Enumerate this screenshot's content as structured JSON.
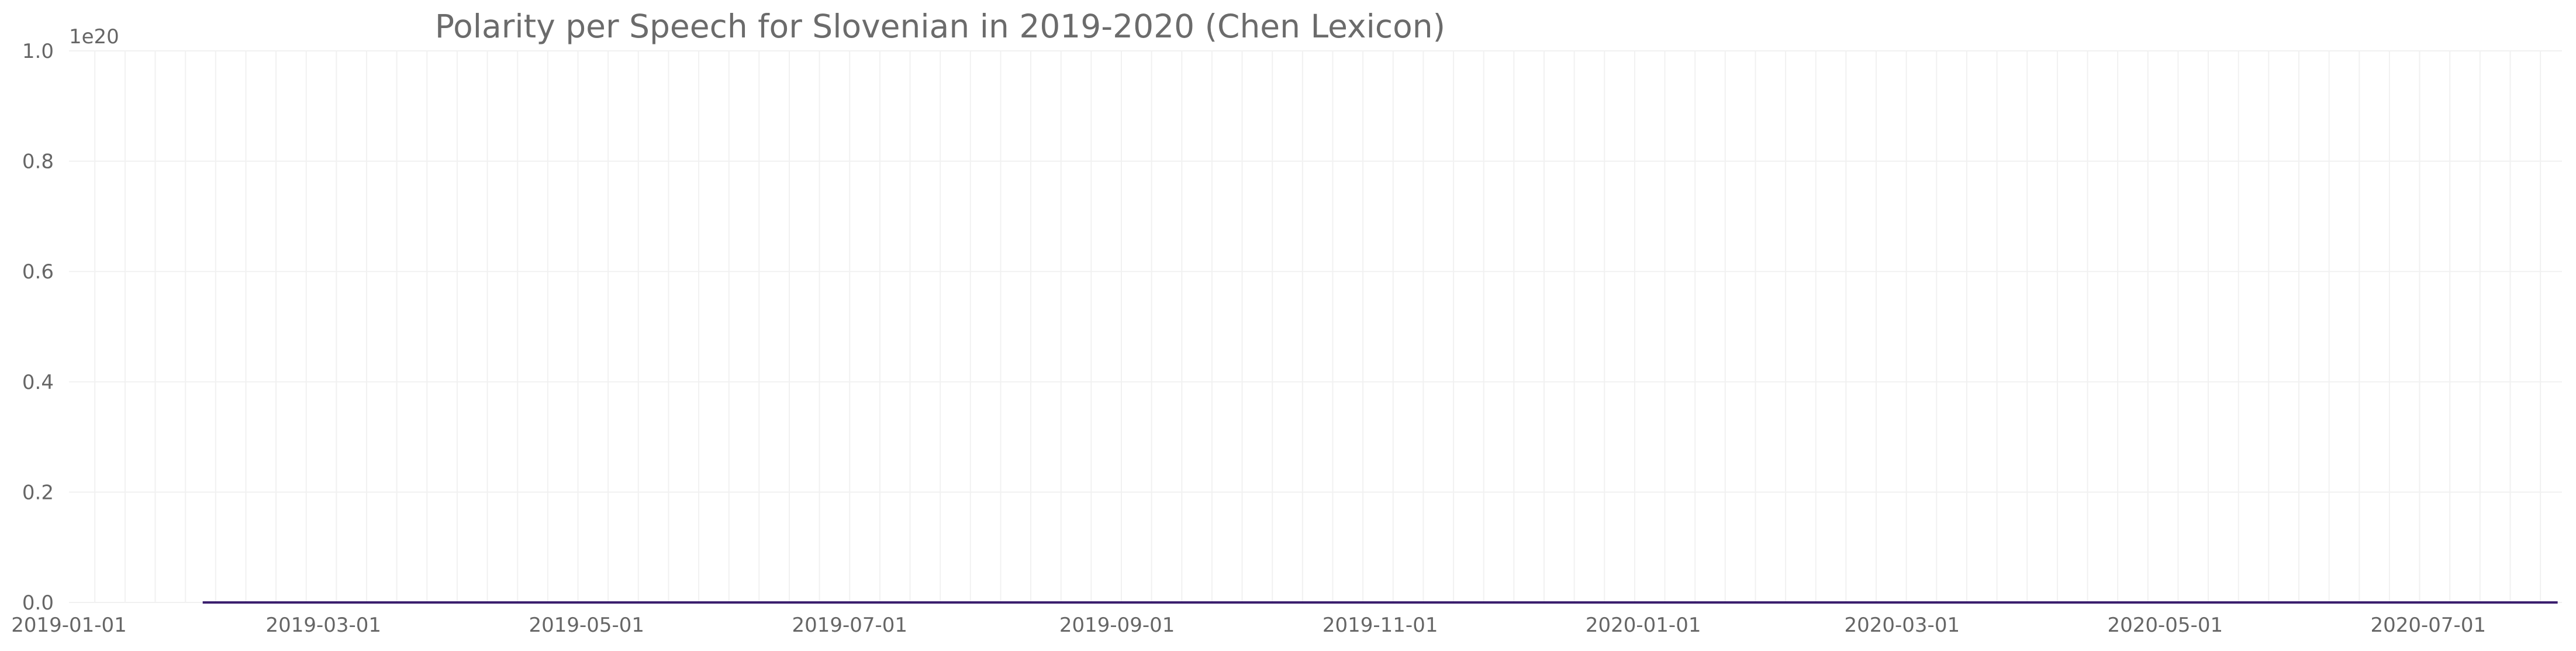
{
  "chart_data": {
    "type": "line",
    "title": "Polarity per Speech for Slovenian in 2019-2020 (Chen Lexicon)",
    "xlabel": "",
    "ylabel": "",
    "y_exponent_label": "1e20",
    "x_domain": [
      "2019-01-01",
      "2020-08-01"
    ],
    "ylim": [
      0,
      1.0
    ],
    "x_ticks": [
      {
        "date": "2019-01-01",
        "label": "2019-01-01"
      },
      {
        "date": "2019-03-01",
        "label": "2019-03-01"
      },
      {
        "date": "2019-05-01",
        "label": "2019-05-01"
      },
      {
        "date": "2019-07-01",
        "label": "2019-07-01"
      },
      {
        "date": "2019-09-01",
        "label": "2019-09-01"
      },
      {
        "date": "2019-11-01",
        "label": "2019-11-01"
      },
      {
        "date": "2020-01-01",
        "label": "2020-01-01"
      },
      {
        "date": "2020-03-01",
        "label": "2020-03-01"
      },
      {
        "date": "2020-05-01",
        "label": "2020-05-01"
      },
      {
        "date": "2020-07-01",
        "label": "2020-07-01"
      }
    ],
    "y_ticks": [
      {
        "value": 0.0,
        "label": "0.0"
      },
      {
        "value": 0.2,
        "label": "0.2"
      },
      {
        "value": 0.4,
        "label": "0.4"
      },
      {
        "value": 0.6,
        "label": "0.6"
      },
      {
        "value": 0.8,
        "label": "0.8"
      },
      {
        "value": 1.0,
        "label": "1.0"
      }
    ],
    "grid": true,
    "series": [
      {
        "color": "#3b1f6e",
        "points": [
          {
            "x": "2019-02-01",
            "y": 0
          },
          {
            "x": "2020-07-31",
            "y": 0
          }
        ]
      }
    ]
  }
}
